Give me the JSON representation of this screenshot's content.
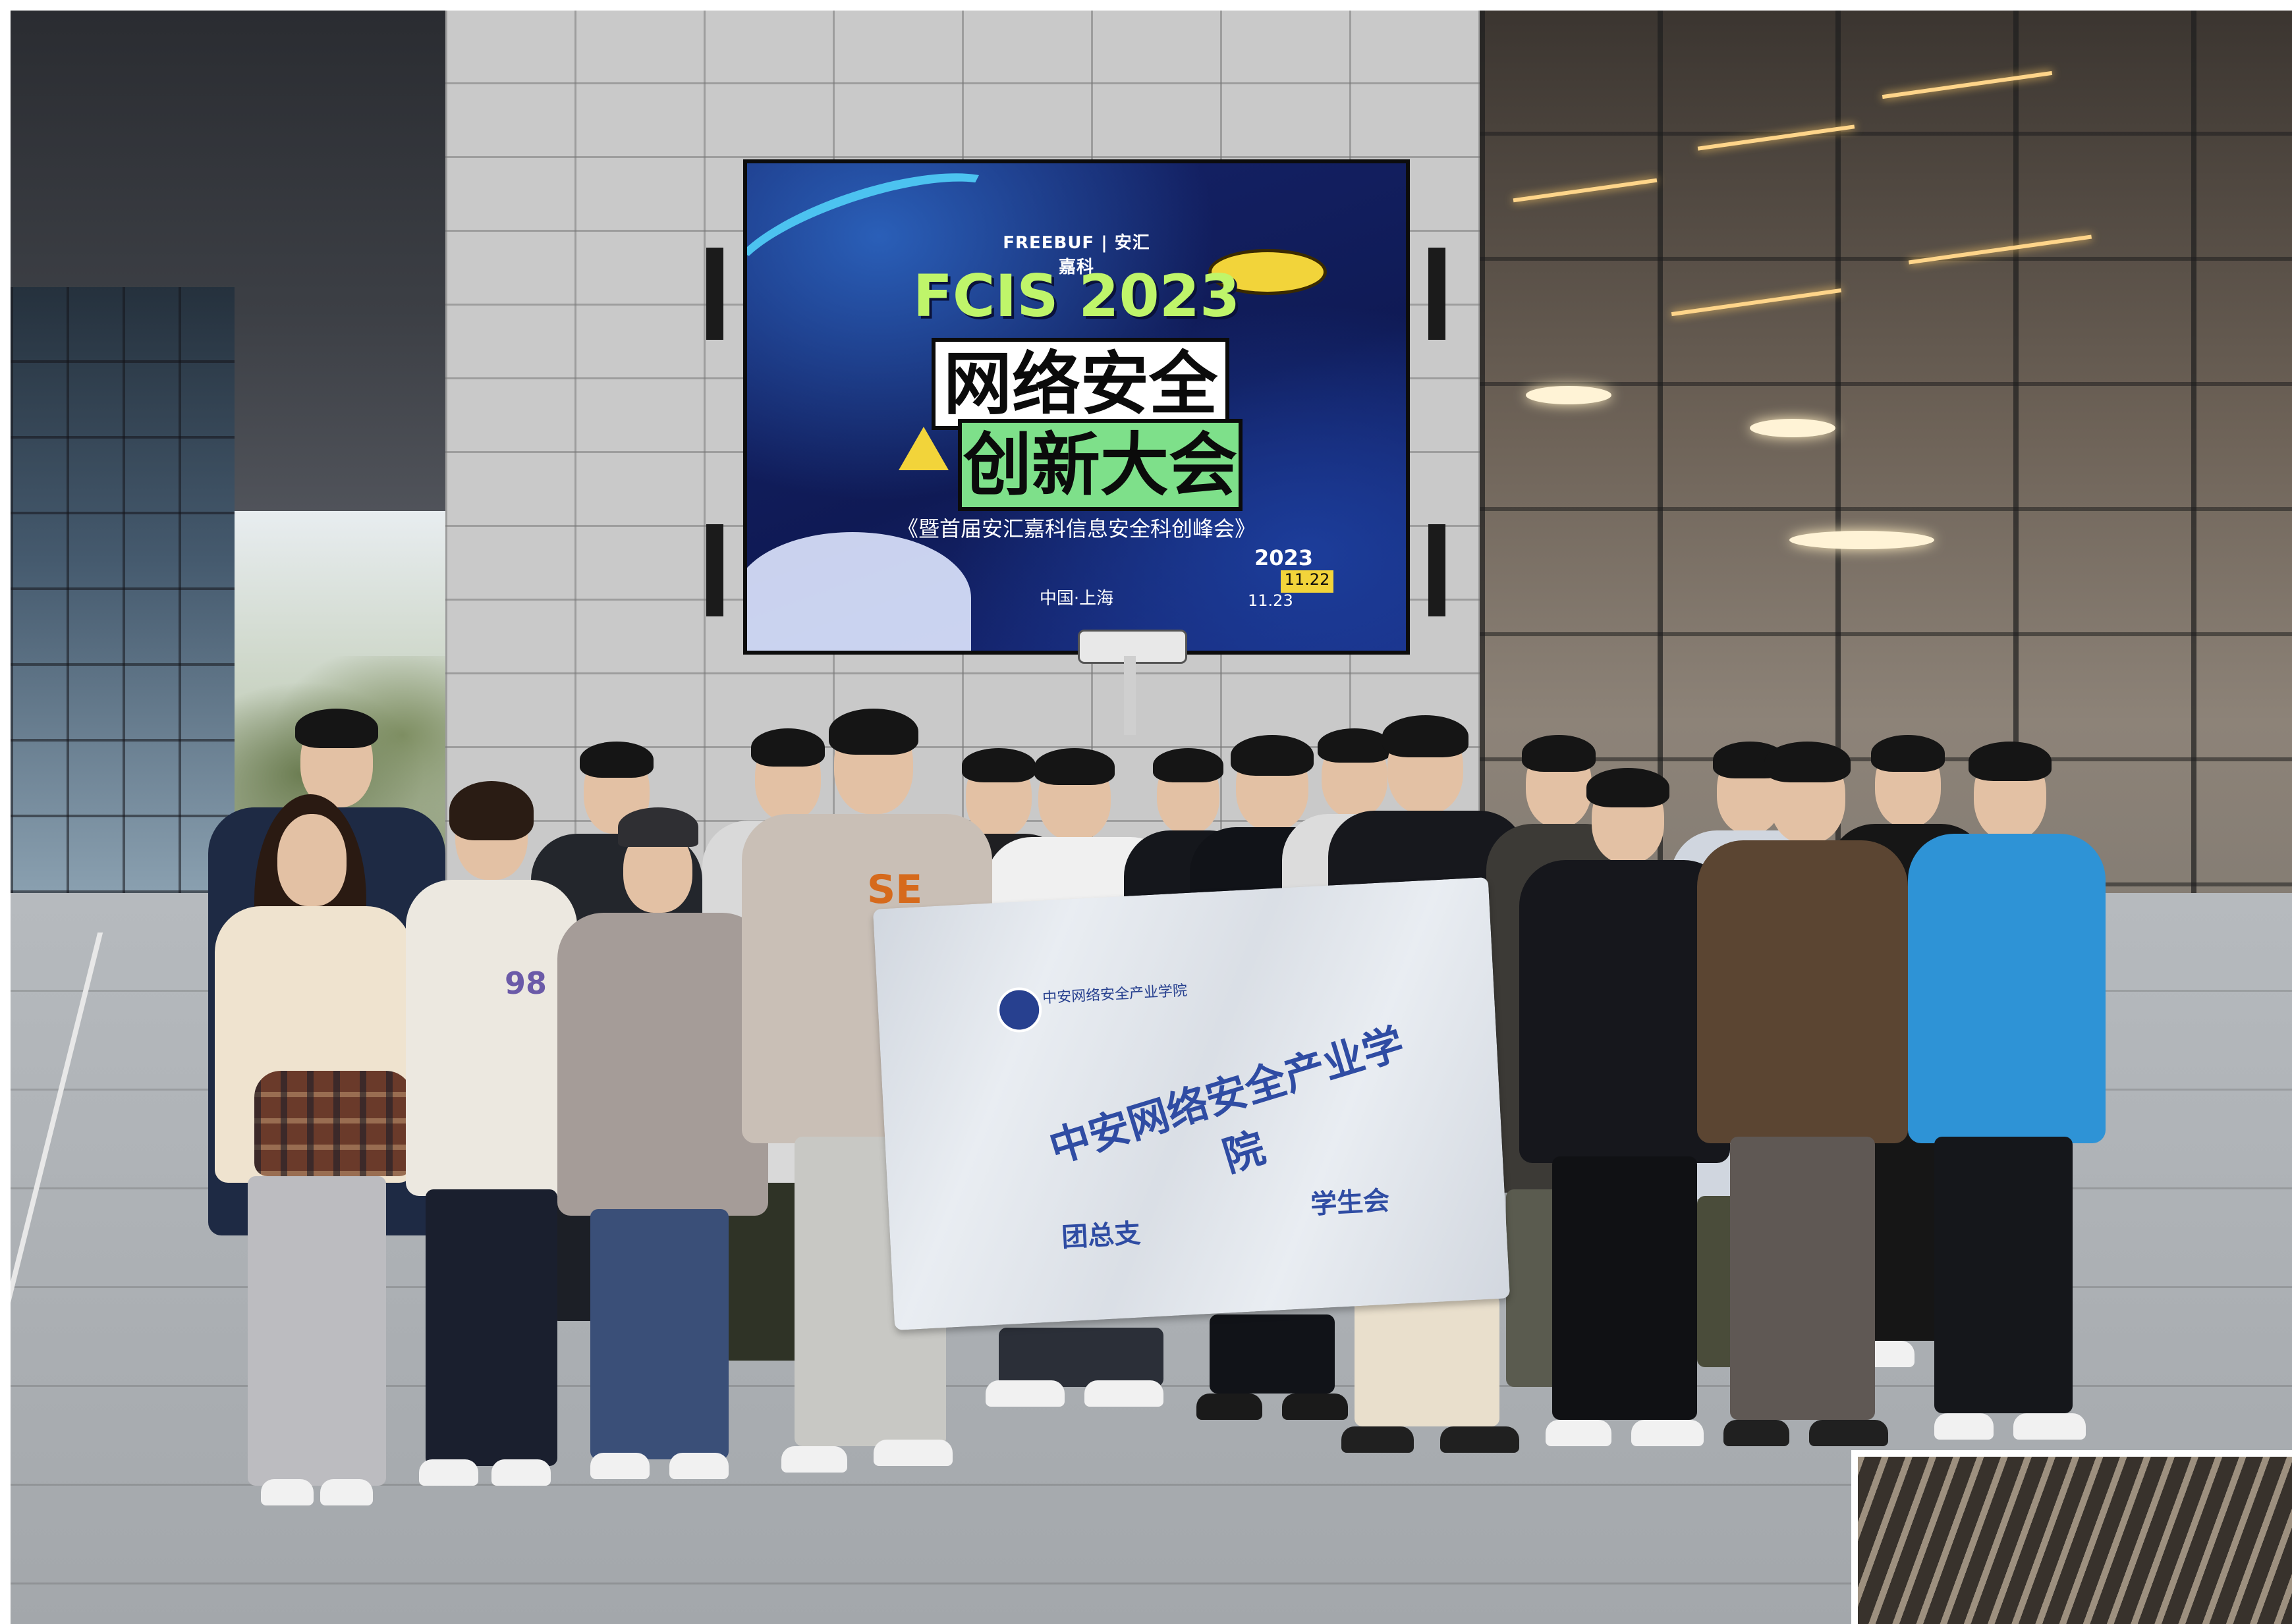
{
  "screen": {
    "brand": "FREEBUF | 安汇嘉科",
    "title": "FCIS 2023",
    "line1": "网络安全",
    "line2": "创新大会",
    "subtitle": "《暨首届安汇嘉科信息安全科创峰会》",
    "year": "2023",
    "date1": "11.22",
    "date2": "11.23",
    "location": "中国·上海"
  },
  "banner": {
    "logo_text": "中安网络安全产业学院",
    "main_text": "中安网络安全产业学院",
    "left_text": "团总支",
    "right_text": "学生会"
  },
  "jacket_number": "98",
  "shirt_letters": "SE"
}
